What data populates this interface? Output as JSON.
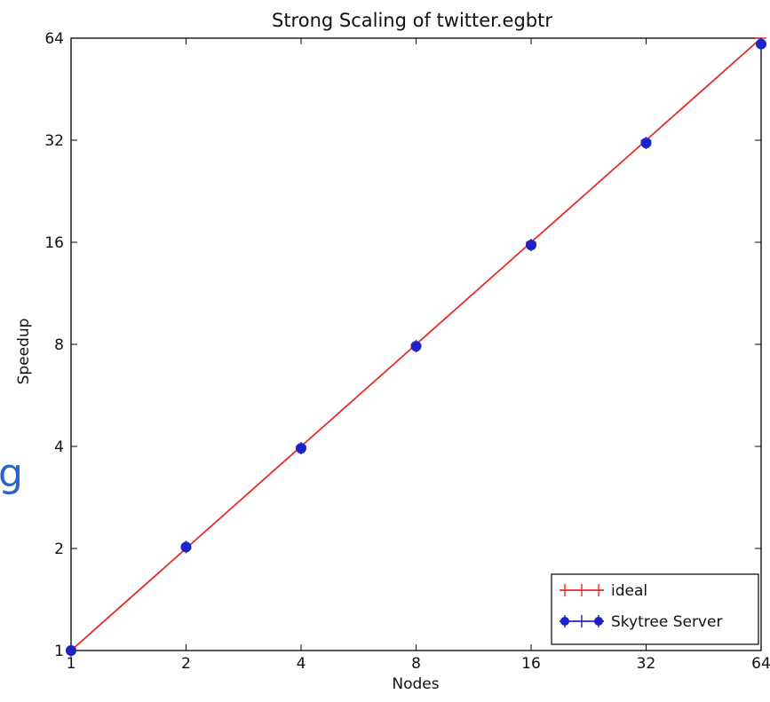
{
  "chart_data": {
    "type": "line",
    "title": "Strong Scaling of twitter.egbtr",
    "xlabel": "Nodes",
    "ylabel": "Speedup",
    "xscale": "log2",
    "yscale": "log2",
    "xlim": [
      1,
      64
    ],
    "ylim": [
      1,
      64
    ],
    "xticks": [
      "1",
      "2",
      "4",
      "8",
      "16",
      "32",
      "64"
    ],
    "yticks": [
      "1",
      "2",
      "4",
      "8",
      "16",
      "32",
      "64"
    ],
    "grid": false,
    "legend_position": "bottom-right",
    "series": [
      {
        "name": "ideal",
        "color": "#e8292b",
        "marker": "plus-errorbar",
        "x": [
          1,
          2,
          4,
          8,
          16,
          32,
          64
        ],
        "y": [
          1,
          2,
          4,
          8,
          16,
          32,
          64
        ]
      },
      {
        "name": "Skytree Server",
        "color": "#1c24c8",
        "marker": "circle",
        "x": [
          1,
          2,
          4,
          8,
          16,
          32,
          64
        ],
        "y": [
          1,
          2.02,
          3.95,
          7.9,
          15.7,
          31.4,
          61.5
        ]
      }
    ]
  },
  "edge_text": "g"
}
